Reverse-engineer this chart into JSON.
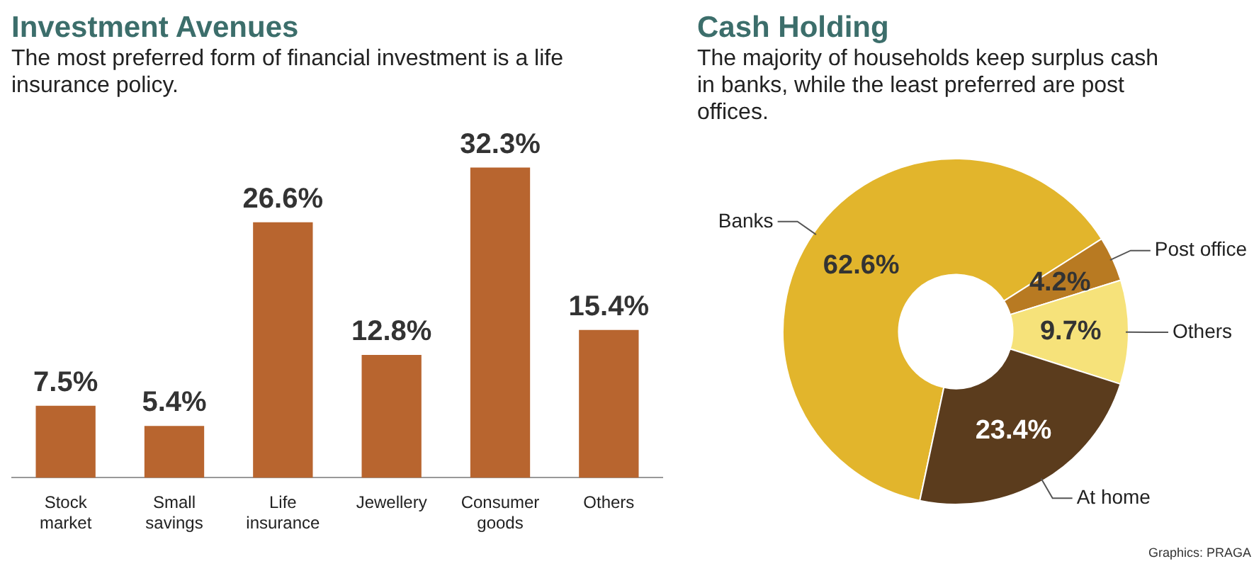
{
  "chart_data": [
    {
      "type": "bar",
      "title": "Investment Avenues",
      "subtitle": "The most preferred form of financial investment is a life insurance policy.",
      "categories": [
        "Stock market",
        "Small savings",
        "Life insurance",
        "Jewellery",
        "Consumer goods",
        "Others"
      ],
      "values": [
        7.5,
        5.4,
        26.6,
        12.8,
        32.3,
        15.4
      ],
      "value_labels": [
        "7.5%",
        "5.4%",
        "26.6%",
        "12.8%",
        "32.3%",
        "15.4%"
      ],
      "color": "#b8652f",
      "grid": false,
      "legend": false
    },
    {
      "type": "donut",
      "title": "Cash Holding",
      "subtitle": "The majority of households keep surplus cash in banks, while the least preferred are post offices.",
      "categories": [
        "Banks",
        "Post office",
        "Others",
        "At home"
      ],
      "values": [
        62.6,
        4.2,
        9.7,
        23.4
      ],
      "value_labels": [
        "62.6%",
        "4.2%",
        "9.7%",
        "23.4%"
      ],
      "colors": [
        "#e2b52c",
        "#b87a22",
        "#f6e27a",
        "#5b3c1d"
      ],
      "legend": false,
      "annotations": [
        "Graphics: PRAGA"
      ]
    }
  ]
}
